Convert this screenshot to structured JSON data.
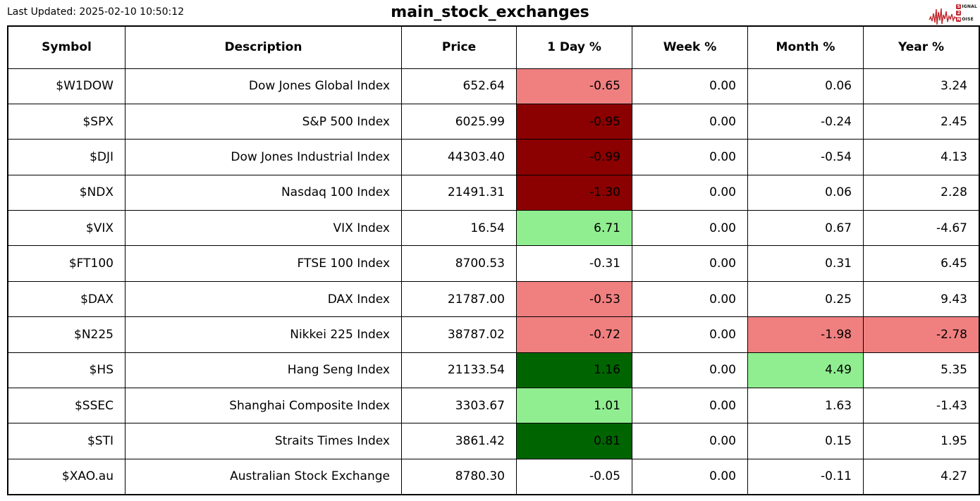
{
  "header": {
    "last_updated": "Last Updated: 2025-02-10 10:50:12",
    "title": "main_stock_exchanges"
  },
  "logo": {
    "color": "#c1272d",
    "line1_boxed": "S",
    "line1_rest": "IGNAL",
    "line2_boxed": "2",
    "line2_rest": "",
    "line3_boxed": "N",
    "line3_rest": "OISE"
  },
  "colors": {
    "positive_strong": "#006400",
    "positive_mild": "#90ee90",
    "negative_strong": "#8b0000",
    "negative_mild": "#f08080",
    "neutral": "#ffffff",
    "border": "#000000"
  },
  "table": {
    "columns": [
      {
        "key": "symbol",
        "label": "Symbol"
      },
      {
        "key": "description",
        "label": "Description"
      },
      {
        "key": "price",
        "label": "Price"
      },
      {
        "key": "day",
        "label": "1 Day %"
      },
      {
        "key": "week",
        "label": "Week %"
      },
      {
        "key": "month",
        "label": "Month %"
      },
      {
        "key": "year",
        "label": "Year %"
      }
    ],
    "rows": [
      {
        "symbol": "$W1DOW",
        "description": "Dow Jones Global Index",
        "price": "652.64",
        "day": "-0.65",
        "week": "0.00",
        "month": "0.06",
        "year": "3.24",
        "colors": {
          "day": "#f08080"
        }
      },
      {
        "symbol": "$SPX",
        "description": "S&P 500 Index",
        "price": "6025.99",
        "day": "-0.95",
        "week": "0.00",
        "month": "-0.24",
        "year": "2.45",
        "colors": {
          "day": "#8b0000"
        }
      },
      {
        "symbol": "$DJI",
        "description": "Dow Jones Industrial Index",
        "price": "44303.40",
        "day": "-0.99",
        "week": "0.00",
        "month": "-0.54",
        "year": "4.13",
        "colors": {
          "day": "#8b0000"
        }
      },
      {
        "symbol": "$NDX",
        "description": "Nasdaq 100 Index",
        "price": "21491.31",
        "day": "-1.30",
        "week": "0.00",
        "month": "0.06",
        "year": "2.28",
        "colors": {
          "day": "#8b0000"
        }
      },
      {
        "symbol": "$VIX",
        "description": "VIX Index",
        "price": "16.54",
        "day": "6.71",
        "week": "0.00",
        "month": "0.67",
        "year": "-4.67",
        "colors": {
          "day": "#90ee90"
        }
      },
      {
        "symbol": "$FT100",
        "description": "FTSE 100 Index",
        "price": "8700.53",
        "day": "-0.31",
        "week": "0.00",
        "month": "0.31",
        "year": "6.45",
        "colors": {}
      },
      {
        "symbol": "$DAX",
        "description": "DAX Index",
        "price": "21787.00",
        "day": "-0.53",
        "week": "0.00",
        "month": "0.25",
        "year": "9.43",
        "colors": {
          "day": "#f08080"
        }
      },
      {
        "symbol": "$N225",
        "description": "Nikkei 225 Index",
        "price": "38787.02",
        "day": "-0.72",
        "week": "0.00",
        "month": "-1.98",
        "year": "-2.78",
        "colors": {
          "day": "#f08080",
          "month": "#f08080",
          "year": "#f08080"
        }
      },
      {
        "symbol": "$HS",
        "description": "Hang Seng Index",
        "price": "21133.54",
        "day": "1.16",
        "week": "0.00",
        "month": "4.49",
        "year": "5.35",
        "colors": {
          "day": "#006400",
          "month": "#90ee90"
        }
      },
      {
        "symbol": "$SSEC",
        "description": "Shanghai Composite Index",
        "price": "3303.67",
        "day": "1.01",
        "week": "0.00",
        "month": "1.63",
        "year": "-1.43",
        "colors": {
          "day": "#90ee90"
        }
      },
      {
        "symbol": "$STI",
        "description": "Straits Times Index",
        "price": "3861.42",
        "day": "0.81",
        "week": "0.00",
        "month": "0.15",
        "year": "1.95",
        "colors": {
          "day": "#006400"
        }
      },
      {
        "symbol": "$XAO.au",
        "description": "Australian Stock Exchange",
        "price": "8780.30",
        "day": "-0.05",
        "week": "0.00",
        "month": "-0.11",
        "year": "4.27",
        "colors": {}
      }
    ]
  },
  "chart_data": {
    "type": "table",
    "title": "main_stock_exchanges",
    "last_updated": "2025-02-10 10:50:12",
    "columns": [
      "Symbol",
      "Description",
      "Price",
      "1 Day %",
      "Week %",
      "Month %",
      "Year %"
    ],
    "rows": [
      [
        "$W1DOW",
        "Dow Jones Global Index",
        652.64,
        -0.65,
        0.0,
        0.06,
        3.24
      ],
      [
        "$SPX",
        "S&P 500 Index",
        6025.99,
        -0.95,
        0.0,
        -0.24,
        2.45
      ],
      [
        "$DJI",
        "Dow Jones Industrial Index",
        44303.4,
        -0.99,
        0.0,
        -0.54,
        4.13
      ],
      [
        "$NDX",
        "Nasdaq 100 Index",
        21491.31,
        -1.3,
        0.0,
        0.06,
        2.28
      ],
      [
        "$VIX",
        "VIX Index",
        16.54,
        6.71,
        0.0,
        0.67,
        -4.67
      ],
      [
        "$FT100",
        "FTSE 100 Index",
        8700.53,
        -0.31,
        0.0,
        0.31,
        6.45
      ],
      [
        "$DAX",
        "DAX Index",
        21787.0,
        -0.53,
        0.0,
        0.25,
        9.43
      ],
      [
        "$N225",
        "Nikkei 225 Index",
        38787.02,
        -0.72,
        0.0,
        -1.98,
        -2.78
      ],
      [
        "$HS",
        "Hang Seng Index",
        21133.54,
        1.16,
        0.0,
        4.49,
        5.35
      ],
      [
        "$SSEC",
        "Shanghai Composite Index",
        3303.67,
        1.01,
        0.0,
        1.63,
        -1.43
      ],
      [
        "$STI",
        "Straits Times Index",
        3861.42,
        0.81,
        0.0,
        0.15,
        1.95
      ],
      [
        "$XAO.au",
        "Australian Stock Exchange",
        8780.3,
        -0.05,
        0.0,
        -0.11,
        4.27
      ]
    ],
    "cell_background_legend": {
      "#8b0000": "strong negative move",
      "#f08080": "mild negative move",
      "#006400": "strong positive move",
      "#90ee90": "mild positive move",
      "#ffffff": "flat / small move"
    }
  }
}
